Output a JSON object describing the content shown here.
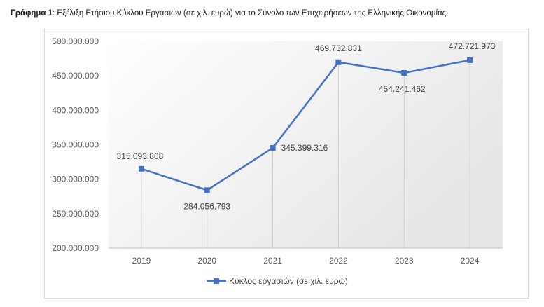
{
  "caption": {
    "prefix": "Γράφημα 1",
    "text": ": Εξέλιξη Ετήσιου Κύκλου Εργασιών (σε χιλ. ευρώ) για το Σύνολο των Επιχειρήσεων της Ελληνικής Οικονομίας"
  },
  "chart_data": {
    "type": "line",
    "categories": [
      "2019",
      "2020",
      "2021",
      "2022",
      "2023",
      "2024"
    ],
    "series": [
      {
        "name": "Κύκλος εργασιών (σε χιλ. ευρώ)",
        "values": [
          315093808,
          284056793,
          345399316,
          469732831,
          454241462,
          472721973
        ],
        "data_labels": [
          "315.093.808",
          "284.056.793",
          "345.399.316",
          "469.732.831",
          "454.241.462",
          "472.721.973"
        ],
        "color": "#4472c4"
      }
    ],
    "ylim": [
      200000000,
      500000000
    ],
    "yticks": [
      200000000,
      250000000,
      300000000,
      350000000,
      400000000,
      450000000,
      500000000
    ],
    "ytick_labels": [
      "200.000.000",
      "250.000.000",
      "300.000.000",
      "350.000.000",
      "400.000.000",
      "450.000.000",
      "500.000.000"
    ],
    "grid": "vertical",
    "legend": "bottom",
    "plot_background": "gradient light grey"
  }
}
